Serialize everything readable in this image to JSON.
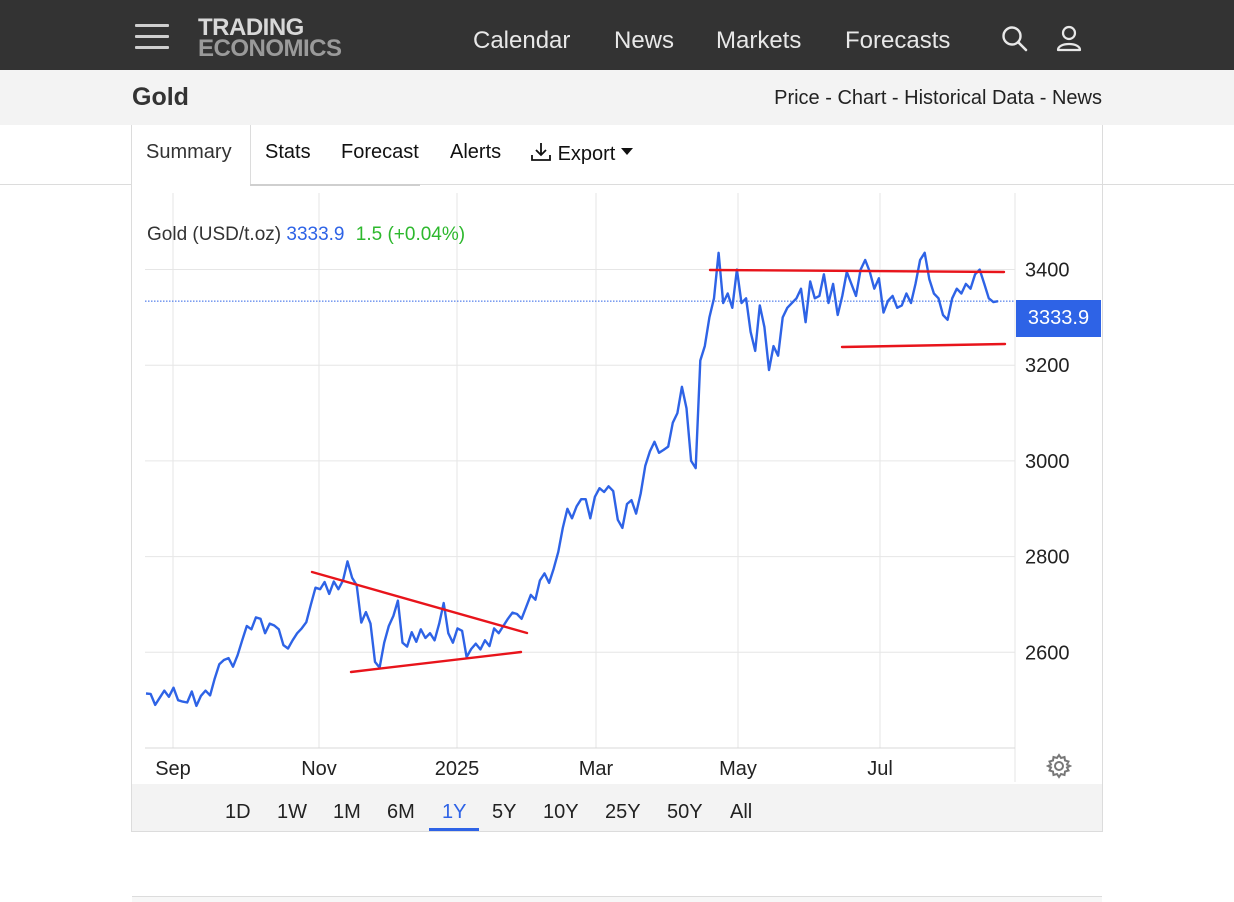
{
  "header": {
    "logo_line1": "TRADING",
    "logo_line2": "ECONOMICS",
    "nav": [
      "Calendar",
      "News",
      "Markets",
      "Forecasts"
    ]
  },
  "subheader": {
    "title": "Gold",
    "links": [
      "Price",
      "Chart",
      "Historical Data",
      "News"
    ],
    "separator": " - "
  },
  "tabs": [
    "Summary",
    "Stats",
    "Forecast",
    "Alerts"
  ],
  "export_label": "Export",
  "legend": {
    "name": "Gold (USD/t.oz)",
    "price": "3333.9",
    "change": "1.5 (+0.04%)"
  },
  "price_tag": "3333.9",
  "ranges": [
    "1D",
    "1W",
    "1M",
    "6M",
    "1Y",
    "5Y",
    "10Y",
    "25Y",
    "50Y",
    "All"
  ],
  "active_range": "1Y",
  "colors": {
    "line": "#2e63e6",
    "trendline": "#e8141b",
    "change": "#2db82d",
    "topbar": "#333333"
  },
  "chart_data": {
    "type": "line",
    "title": "",
    "xlabel": "",
    "ylabel": "",
    "x_ticks": [
      "Sep",
      "Nov",
      "2025",
      "Mar",
      "May",
      "Jul"
    ],
    "y_ticks": [
      2600,
      2800,
      3000,
      3200,
      3400
    ],
    "ylim": [
      2400,
      3560
    ],
    "grid": true,
    "series": [
      {
        "values": [
          2514,
          2513,
          2490,
          2505,
          2520,
          2507,
          2526,
          2500,
          2497,
          2495,
          2518,
          2488,
          2509,
          2520,
          2510,
          2545,
          2575,
          2584,
          2588,
          2570,
          2594,
          2625,
          2655,
          2648,
          2673,
          2670,
          2640,
          2660,
          2656,
          2648,
          2615,
          2608,
          2625,
          2640,
          2650,
          2663,
          2700,
          2735,
          2732,
          2747,
          2722,
          2748,
          2732,
          2750,
          2790,
          2756,
          2740,
          2662,
          2684,
          2660,
          2580,
          2568,
          2620,
          2655,
          2676,
          2708,
          2620,
          2612,
          2642,
          2622,
          2648,
          2630,
          2640,
          2625,
          2660,
          2703,
          2640,
          2620,
          2650,
          2645,
          2590,
          2607,
          2618,
          2606,
          2625,
          2613,
          2650,
          2640,
          2655,
          2670,
          2683,
          2680,
          2670,
          2695,
          2720,
          2710,
          2750,
          2765,
          2745,
          2775,
          2810,
          2860,
          2900,
          2880,
          2905,
          2920,
          2920,
          2880,
          2925,
          2943,
          2935,
          2947,
          2937,
          2877,
          2860,
          2910,
          2918,
          2890,
          2932,
          2990,
          3020,
          3040,
          3017,
          3023,
          3030,
          3080,
          3100,
          3155,
          3110,
          3000,
          2985,
          3210,
          3240,
          3300,
          3340,
          3435,
          3330,
          3350,
          3320,
          3400,
          3330,
          3340,
          3270,
          3230,
          3325,
          3280,
          3190,
          3240,
          3220,
          3300,
          3320,
          3330,
          3340,
          3360,
          3290,
          3375,
          3340,
          3345,
          3390,
          3330,
          3370,
          3305,
          3345,
          3395,
          3370,
          3345,
          3400,
          3420,
          3396,
          3360,
          3382,
          3310,
          3335,
          3345,
          3320,
          3325,
          3350,
          3330,
          3370,
          3420,
          3435,
          3380,
          3350,
          3340,
          3305,
          3295,
          3340,
          3360,
          3350,
          3370,
          3360,
          3390,
          3400,
          3370,
          3340,
          3332,
          3333.9
        ]
      }
    ]
  }
}
